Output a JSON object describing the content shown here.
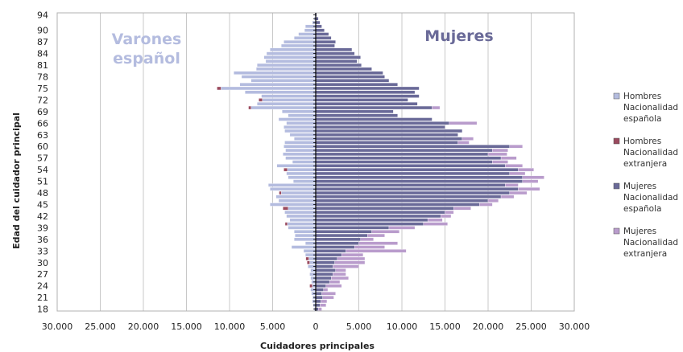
{
  "chart_data": {
    "type": "bar",
    "orientation": "horizontal",
    "xlabel": "Cuidadores principales",
    "ylabel": "Edad del cuidador principal",
    "xlim": [
      -30000,
      30000
    ],
    "x_ticks": [
      -30000,
      -25000,
      -20000,
      -15000,
      -10000,
      -5000,
      0,
      5000,
      10000,
      15000,
      20000,
      25000,
      30000
    ],
    "x_tick_labels": [
      "30.000",
      "25.000",
      "20.000",
      "15.000",
      "10.000",
      "5.000",
      "0",
      "5.000",
      "10.000",
      "15.000",
      "20.000",
      "25.000",
      "30.000"
    ],
    "y_ticks": [
      18,
      21,
      24,
      27,
      30,
      33,
      36,
      39,
      42,
      45,
      48,
      51,
      54,
      57,
      60,
      63,
      66,
      69,
      72,
      75,
      78,
      81,
      84,
      87,
      90,
      94
    ],
    "y_tick_labels": [
      "18",
      "21",
      "24",
      "27",
      "30",
      "33",
      "36",
      "39",
      "42",
      "45",
      "48",
      "51",
      "54",
      "57",
      "60",
      "63",
      "66",
      "69",
      "72",
      "75",
      "78",
      "81",
      "84",
      "87",
      "90",
      "94"
    ],
    "grid": "vertical",
    "legend_position": "right",
    "annotations": {
      "left": "Varones\nespañol",
      "right": "Mujeres"
    },
    "ages": [
      18,
      19,
      20,
      21,
      22,
      23,
      24,
      25,
      26,
      27,
      28,
      29,
      30,
      31,
      32,
      33,
      34,
      35,
      36,
      37,
      38,
      39,
      40,
      41,
      42,
      43,
      44,
      45,
      46,
      47,
      48,
      49,
      50,
      51,
      52,
      53,
      54,
      55,
      56,
      57,
      58,
      59,
      60,
      61,
      62,
      63,
      64,
      65,
      66,
      67,
      68,
      69,
      70,
      71,
      72,
      73,
      74,
      75,
      76,
      77,
      78,
      79,
      80,
      81,
      82,
      83,
      84,
      85,
      86,
      87,
      88,
      89,
      90,
      91,
      92,
      93,
      94
    ],
    "series": [
      {
        "name": "Hombres Nacionalidad española",
        "color": "#b4bcdf",
        "values": [
          200,
          300,
          400,
          350,
          500,
          600,
          400,
          500,
          600,
          700,
          600,
          900,
          700,
          800,
          1200,
          1400,
          2800,
          1200,
          2500,
          2400,
          2500,
          3200,
          3300,
          3000,
          3400,
          3600,
          3200,
          5300,
          4300,
          4600,
          4000,
          5300,
          5500,
          2600,
          3200,
          3400,
          3300,
          4500,
          2700,
          3500,
          3800,
          3500,
          3700,
          3600,
          2500,
          3000,
          3600,
          3700,
          3400,
          4300,
          3200,
          3900,
          7500,
          6800,
          6200,
          6300,
          8200,
          11000,
          8800,
          7500,
          8600,
          9500,
          6900,
          6800,
          5800,
          6000,
          5700,
          5300,
          4000,
          3700,
          2500,
          2000,
          1300,
          1200,
          400,
          200,
          100
        ]
      },
      {
        "name": "Hombres Nacionalidad extranjera",
        "color": "#9a4a5e",
        "values": [
          0,
          0,
          0,
          0,
          0,
          0,
          300,
          0,
          0,
          0,
          0,
          0,
          300,
          350,
          0,
          0,
          0,
          0,
          0,
          0,
          0,
          0,
          250,
          0,
          0,
          0,
          600,
          0,
          0,
          0,
          250,
          0,
          0,
          0,
          0,
          0,
          400,
          0,
          0,
          0,
          0,
          0,
          0,
          0,
          0,
          0,
          0,
          0,
          0,
          0,
          0,
          0,
          300,
          0,
          400,
          0,
          0,
          450,
          0,
          0,
          0,
          0,
          0,
          0,
          0,
          0,
          0,
          0,
          0,
          0,
          0,
          0,
          0,
          0,
          0,
          0,
          0
        ]
      },
      {
        "name": "Mujeres Nacionalidad española",
        "color": "#6a6a98",
        "values": [
          300,
          500,
          600,
          800,
          700,
          900,
          1200,
          1600,
          1800,
          2000,
          2300,
          2000,
          2200,
          2500,
          3000,
          3500,
          4500,
          5000,
          5200,
          6000,
          6500,
          8500,
          12500,
          13000,
          14500,
          15000,
          16000,
          19000,
          20000,
          21500,
          22500,
          23500,
          22000,
          24000,
          24000,
          22500,
          23500,
          22000,
          20500,
          21500,
          20000,
          20500,
          22500,
          16500,
          17000,
          16500,
          17000,
          15000,
          15500,
          13500,
          9500,
          9000,
          13500,
          11800,
          10700,
          12000,
          11500,
          12000,
          9500,
          8500,
          8000,
          7800,
          6500,
          5300,
          4800,
          5200,
          4500,
          4200,
          2200,
          2300,
          1800,
          1500,
          1000,
          700,
          500,
          300,
          100
        ]
      },
      {
        "name": "Mujeres Nacionalidad extranjera",
        "color": "#b99ccc",
        "values": [
          400,
          700,
          700,
          1300,
          1600,
          500,
          1800,
          1200,
          2000,
          1500,
          1200,
          3000,
          3500,
          3200,
          2500,
          7000,
          3500,
          4500,
          1500,
          2000,
          3200,
          3000,
          2800,
          1700,
          1200,
          1000,
          2000,
          1500,
          1200,
          1500,
          2000,
          2500,
          1500,
          1800,
          2500,
          1800,
          1800,
          2000,
          1800,
          1800,
          2200,
          1800,
          1500,
          1300,
          1300,
          0,
          0,
          0,
          3200,
          0,
          0,
          0,
          900,
          0,
          0,
          0,
          0,
          0,
          0,
          0,
          0,
          0,
          0,
          0,
          0,
          0,
          0,
          0,
          0,
          0,
          0,
          0,
          0,
          0,
          0,
          0,
          0
        ]
      }
    ]
  }
}
